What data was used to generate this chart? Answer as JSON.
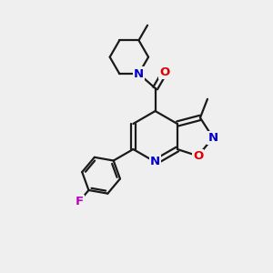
{
  "background_color": "#efefef",
  "bond_color": "#1a1a1a",
  "atom_colors": {
    "N": "#0000cc",
    "O": "#dd0000",
    "F": "#bb00bb",
    "C": "#1a1a1a"
  },
  "lw": 1.6,
  "fs": 9.5
}
